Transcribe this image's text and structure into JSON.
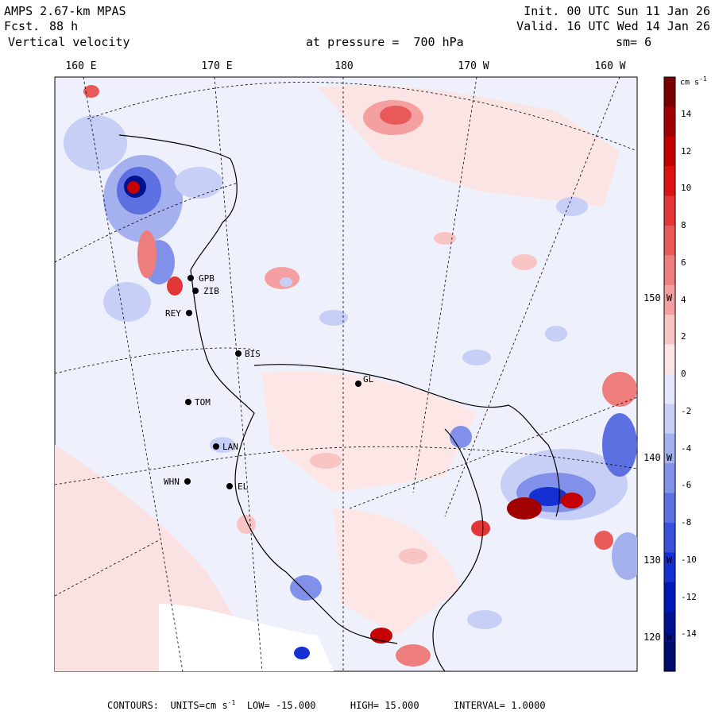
{
  "header": {
    "model": "AMPS 2.67-km MPAS",
    "fcst_label": "Fcst.",
    "fcst_value": "88 h",
    "variable": "Vertical velocity",
    "init": "Init. 00 UTC Sun 11 Jan 26",
    "valid": "Valid. 16 UTC Wed 14 Jan 26",
    "level": "at pressure =  700 hPa",
    "smoothing": "sm= 6"
  },
  "longitude_labels": [
    "160 E",
    "170 E",
    "180",
    "170 W",
    "160 W"
  ],
  "latitude_labels": [
    "150 W",
    "140 W",
    "130 W",
    "120 W"
  ],
  "colorbar": {
    "units_label": "cm s",
    "units_exp": "-1",
    "ticks": [
      "14",
      "12",
      "10",
      "8",
      "6",
      "4",
      "2",
      "0",
      "-2",
      "-4",
      "-6",
      "-8",
      "-10",
      "-12",
      "-14"
    ],
    "positive_colors": [
      "#fde4e4",
      "#f9c4c4",
      "#f4a0a0",
      "#ee7d7d",
      "#e85a5a",
      "#e23636",
      "#dc1212",
      "#c40000",
      "#a00000",
      "#7a0000"
    ],
    "negative_colors": [
      "#e4e7fb",
      "#c8cff6",
      "#a5b0ef",
      "#8190e8",
      "#5d70e1",
      "#3950da",
      "#1530d2",
      "#0018b4",
      "#001290",
      "#000c6c"
    ]
  },
  "stations": [
    {
      "code": "GPB"
    },
    {
      "code": "ZIB"
    },
    {
      "code": "REY"
    },
    {
      "code": "BIS"
    },
    {
      "code": "GL"
    },
    {
      "code": "TOM"
    },
    {
      "code": "LAN"
    },
    {
      "code": "WHN"
    },
    {
      "code": "EL"
    }
  ],
  "footer": {
    "contours": "CONTOURS:",
    "units_prefix": "UNITS=cm s",
    "units_exp": "-1",
    "low": "LOW= -15.000",
    "high": "HIGH= 15.000",
    "interval": "INTERVAL= 1.0000"
  }
}
